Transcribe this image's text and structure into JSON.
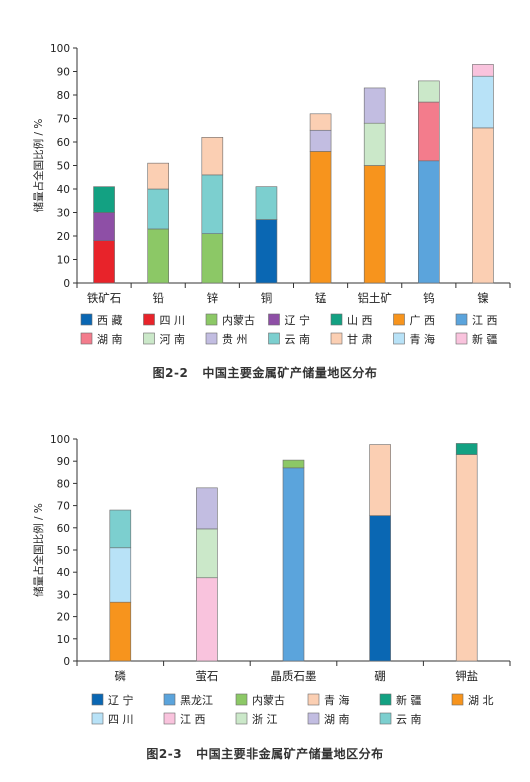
{
  "chart_data": [
    {
      "type": "bar",
      "stacked": true,
      "ylabel": "储量占全国比例 / %",
      "ylim": [
        0,
        100
      ],
      "yticks": [
        0,
        10,
        20,
        30,
        40,
        50,
        60,
        70,
        80,
        90,
        100
      ],
      "grid": false,
      "legend_position": "bottom",
      "categories": [
        "铁矿石",
        "铅",
        "锌",
        "铜",
        "锰",
        "铝土矿",
        "钨",
        "镍"
      ],
      "series": [
        {
          "name": "西 藏",
          "color": "#0a67b3",
          "values": [
            0,
            0,
            0,
            27,
            0,
            0,
            0,
            0
          ]
        },
        {
          "name": "四 川",
          "color": "#e8232a",
          "values": [
            18,
            0,
            0,
            0,
            0,
            0,
            0,
            0
          ]
        },
        {
          "name": "内蒙古",
          "color": "#8cc866",
          "values": [
            0,
            23,
            21,
            0,
            0,
            0,
            0,
            0
          ]
        },
        {
          "name": "辽 宁",
          "color": "#8e4fa6",
          "values": [
            12,
            0,
            0,
            0,
            0,
            0,
            0,
            0
          ]
        },
        {
          "name": "山 西",
          "color": "#13a182",
          "values": [
            11,
            0,
            0,
            0,
            0,
            0,
            0,
            0
          ]
        },
        {
          "name": "广 西",
          "color": "#f7941d",
          "values": [
            0,
            0,
            0,
            0,
            56,
            50,
            0,
            0
          ]
        },
        {
          "name": "江 西",
          "color": "#5ba4dc",
          "values": [
            0,
            0,
            0,
            0,
            0,
            0,
            52,
            0
          ]
        },
        {
          "name": "湖 南",
          "color": "#f37c8c",
          "values": [
            0,
            0,
            0,
            0,
            0,
            0,
            25,
            0
          ]
        },
        {
          "name": "河 南",
          "color": "#cbe8c9",
          "values": [
            0,
            0,
            0,
            0,
            0,
            18,
            9,
            0
          ]
        },
        {
          "name": "贵 州",
          "color": "#c2bde1",
          "values": [
            0,
            0,
            0,
            0,
            9,
            15,
            0,
            0
          ]
        },
        {
          "name": "云 南",
          "color": "#7ccfcf",
          "values": [
            0,
            17,
            25,
            14,
            0,
            0,
            0,
            0
          ]
        },
        {
          "name": "甘 肃",
          "color": "#fbcfb3",
          "values": [
            0,
            11,
            16,
            0,
            7,
            0,
            0,
            66
          ]
        },
        {
          "name": "青 海",
          "color": "#b8e2f7",
          "values": [
            0,
            0,
            0,
            0,
            0,
            0,
            0,
            22
          ]
        },
        {
          "name": "新 疆",
          "color": "#f9c3dd",
          "values": [
            0,
            0,
            0,
            0,
            0,
            0,
            0,
            5
          ]
        }
      ],
      "caption_number": "图2-2",
      "caption_text": "中国主要金属矿产储量地区分布"
    },
    {
      "type": "bar",
      "stacked": true,
      "ylabel": "储量占全国比例 / %",
      "ylim": [
        0,
        100
      ],
      "yticks": [
        0,
        10,
        20,
        30,
        40,
        50,
        60,
        70,
        80,
        90,
        100
      ],
      "grid": false,
      "legend_position": "bottom",
      "categories": [
        "磷",
        "萤石",
        "晶质石墨",
        "硼",
        "钾盐"
      ],
      "series": [
        {
          "name": "辽 宁",
          "color": "#0a67b3",
          "values": [
            0,
            0,
            0,
            65.5,
            0
          ]
        },
        {
          "name": "黑龙江",
          "color": "#5ba4dc",
          "values": [
            0,
            0,
            87,
            0,
            0
          ]
        },
        {
          "name": "内蒙古",
          "color": "#8cc866",
          "values": [
            0,
            0,
            3.5,
            0,
            0
          ]
        },
        {
          "name": "青 海",
          "color": "#fbcfb3",
          "values": [
            0,
            0,
            0,
            32,
            93
          ]
        },
        {
          "name": "新 疆",
          "color": "#13a182",
          "values": [
            0,
            0,
            0,
            0,
            5
          ]
        },
        {
          "name": "湖 北",
          "color": "#f7941d",
          "values": [
            26.5,
            0,
            0,
            0,
            0
          ]
        },
        {
          "name": "四 川",
          "color": "#b8e2f7",
          "values": [
            24.5,
            0,
            0,
            0,
            0
          ]
        },
        {
          "name": "江 西",
          "color": "#f9c3dd",
          "values": [
            0,
            37.5,
            0,
            0,
            0
          ]
        },
        {
          "name": "浙 江",
          "color": "#cbe8c9",
          "values": [
            0,
            22,
            0,
            0,
            0
          ]
        },
        {
          "name": "湖 南",
          "color": "#c2bde1",
          "values": [
            0,
            18.5,
            0,
            0,
            0
          ]
        },
        {
          "name": "云 南",
          "color": "#7ccfcf",
          "values": [
            17,
            0,
            0,
            0,
            0
          ]
        }
      ],
      "caption_number": "图2-3",
      "caption_text": "中国主要非金属矿产储量地区分布"
    }
  ]
}
